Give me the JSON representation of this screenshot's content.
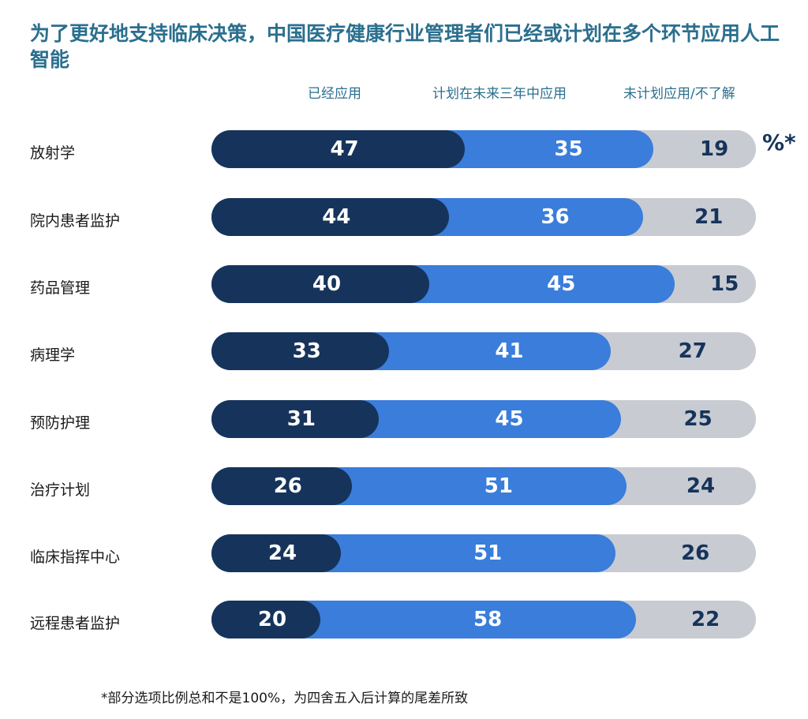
{
  "colors": {
    "applied": "#16345b",
    "planned": "#3a7ddb",
    "not_planned": "#c8cbd2",
    "title": "#2b6f8e"
  },
  "unit_label": "%*",
  "footnote": "*部分选项比例总和不是100%，为四舍五入后计算的尾差所致",
  "chart_data": {
    "type": "bar",
    "orientation": "horizontal",
    "stacked": true,
    "title": "为了更好地支持临床决策，中国医疗健康行业管理者们已经或计划在多个环节应用人工智能",
    "legend_placement": "top",
    "categories": [
      "放射学",
      "院内患者监护",
      "药品管理",
      "病理学",
      "预防护理",
      "治疗计划",
      "临床指挥中心",
      "远程患者监护"
    ],
    "series": [
      {
        "name": "已经应用",
        "values": [
          47,
          44,
          40,
          33,
          31,
          26,
          24,
          20
        ]
      },
      {
        "name": "计划在未来三年中应用",
        "values": [
          35,
          36,
          45,
          41,
          45,
          51,
          51,
          58
        ]
      },
      {
        "name": "未计划应用/不了解",
        "values": [
          19,
          21,
          15,
          27,
          25,
          24,
          26,
          22
        ]
      }
    ]
  }
}
